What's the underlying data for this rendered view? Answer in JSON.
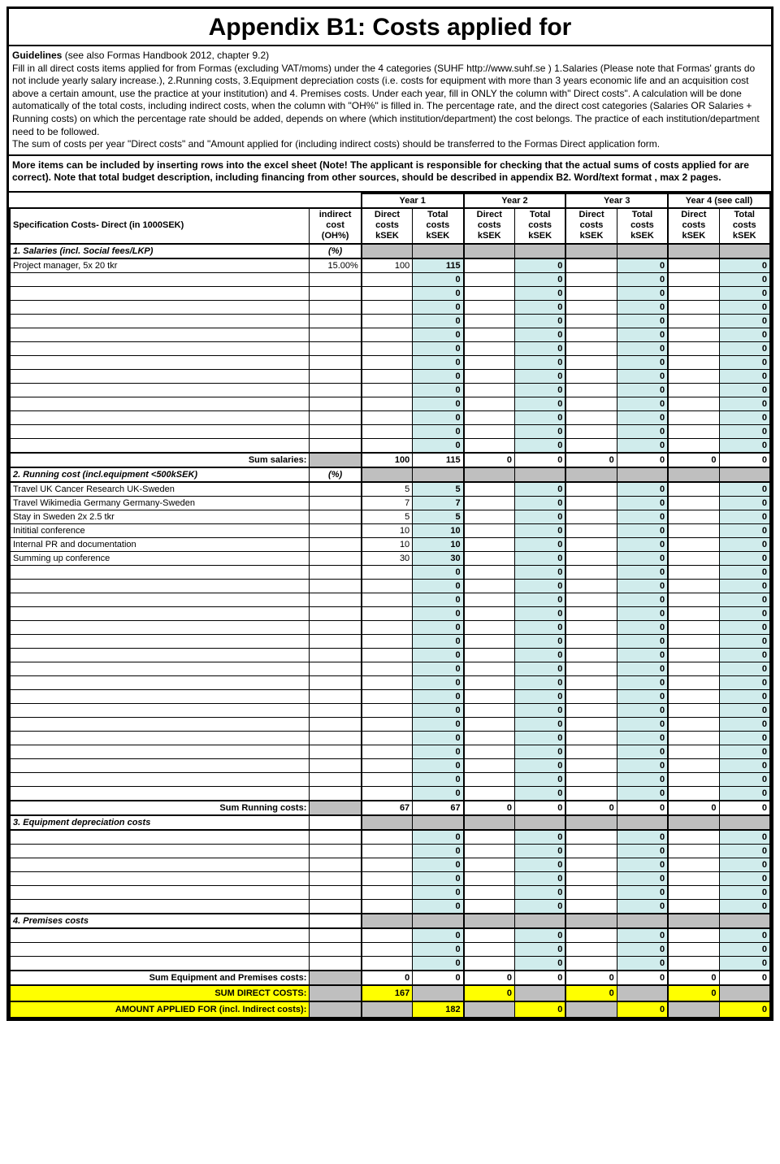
{
  "title": "Appendix B1: Costs applied for",
  "guidelines_label": "Guidelines",
  "guidelines_ref": "(see also Formas Handbook 2012, chapter 9.2)",
  "guidelines_body": "Fill in all direct costs items applied for from Formas (excluding VAT/moms) under the 4 categories (SUHF http://www.suhf.se ) 1.Salaries (Please note that Formas' grants do not include yearly salary increase.), 2.Running costs, 3.Equipment depreciation costs (i.e. costs for equipment with more than 3 years economic life and an acquisition cost above a certain amount, use the practice at your institution) and 4. Premises costs. Under each year, fill in ONLY the column with\" Direct costs\". A calculation will be done automatically of the total costs, including indirect costs, when the column with \"OH%\" is filled in. The percentage rate, and the direct cost categories (Salaries OR Salaries + Running costs) on which the percentage rate should be added, depends on where (which institution/department) the cost belongs. The practice of each institution/department need to be followed.\nThe sum of costs per year \"Direct costs\"  and \"Amount applied for (including indirect costs) should be transferred to the Formas Direct  application form.",
  "more_items_note": "More items can be included by inserting rows into the excel sheet (Note! The applicant is responsible for checking that the actual sums of costs applied for are correct). Note that total budget description, including financing from other sources,  should  be described in appendix B2. Word/text format , max 2 pages.",
  "years": [
    "Year 1",
    "Year 2",
    "Year 3",
    "Year 4 (see call)"
  ],
  "headers": {
    "spec": "Specification Costs- Direct (in 1000SEK)",
    "indirect": "indirect cost (OH%)",
    "direct": "Direct costs kSEK",
    "total": "Total costs kSEK"
  },
  "sections": {
    "salaries": {
      "title": "1. Salaries  (incl. Social fees/LKP)",
      "oh_label": "(%)",
      "rows": [
        {
          "label": "Project manager, 5x 20 tkr",
          "oh": "15.00%",
          "y1d": "100",
          "y1t": "115",
          "y2t": "0",
          "y3t": "0",
          "y4t": "0"
        },
        {
          "y1t": "0",
          "y2t": "0",
          "y3t": "0",
          "y4t": "0"
        },
        {
          "y1t": "0",
          "y2t": "0",
          "y3t": "0",
          "y4t": "0"
        },
        {
          "y1t": "0",
          "y2t": "0",
          "y3t": "0",
          "y4t": "0"
        },
        {
          "y1t": "0",
          "y2t": "0",
          "y3t": "0",
          "y4t": "0"
        },
        {
          "y1t": "0",
          "y2t": "0",
          "y3t": "0",
          "y4t": "0"
        },
        {
          "y1t": "0",
          "y2t": "0",
          "y3t": "0",
          "y4t": "0"
        },
        {
          "y1t": "0",
          "y2t": "0",
          "y3t": "0",
          "y4t": "0"
        },
        {
          "y1t": "0",
          "y2t": "0",
          "y3t": "0",
          "y4t": "0"
        },
        {
          "y1t": "0",
          "y2t": "0",
          "y3t": "0",
          "y4t": "0"
        },
        {
          "y1t": "0",
          "y2t": "0",
          "y3t": "0",
          "y4t": "0"
        },
        {
          "y1t": "0",
          "y2t": "0",
          "y3t": "0",
          "y4t": "0"
        },
        {
          "y1t": "0",
          "y2t": "0",
          "y3t": "0",
          "y4t": "0"
        },
        {
          "y1t": "0",
          "y2t": "0",
          "y3t": "0",
          "y4t": "0"
        }
      ],
      "sum_label": "Sum salaries:",
      "sum": {
        "y1d": "100",
        "y1t": "115",
        "y2d": "0",
        "y2t": "0",
        "y3d": "0",
        "y3t": "0",
        "y4d": "0",
        "y4t": "0"
      }
    },
    "running": {
      "title": "2. Running cost (incl.equipment <500kSEK)",
      "oh_label": "(%)",
      "rows": [
        {
          "label": "Travel UK Cancer Research UK-Sweden",
          "y1d": "5",
          "y1t": "5",
          "y2t": "0",
          "y3t": "0",
          "y4t": "0"
        },
        {
          "label": "Travel Wikimedia Germany Germany-Sweden",
          "y1d": "7",
          "y1t": "7",
          "y2t": "0",
          "y3t": "0",
          "y4t": "0"
        },
        {
          "label": "Stay in Sweden 2x 2.5 tkr",
          "y1d": "5",
          "y1t": "5",
          "y2t": "0",
          "y3t": "0",
          "y4t": "0"
        },
        {
          "label": "Inititial conference",
          "y1d": "10",
          "y1t": "10",
          "y2t": "0",
          "y3t": "0",
          "y4t": "0"
        },
        {
          "label": "Internal PR and documentation",
          "y1d": "10",
          "y1t": "10",
          "y2t": "0",
          "y3t": "0",
          "y4t": "0"
        },
        {
          "label": "Summing up conference",
          "y1d": "30",
          "y1t": "30",
          "y2t": "0",
          "y3t": "0",
          "y4t": "0"
        },
        {
          "y1t": "0",
          "y2t": "0",
          "y3t": "0",
          "y4t": "0"
        },
        {
          "y1t": "0",
          "y2t": "0",
          "y3t": "0",
          "y4t": "0"
        },
        {
          "y1t": "0",
          "y2t": "0",
          "y3t": "0",
          "y4t": "0"
        },
        {
          "y1t": "0",
          "y2t": "0",
          "y3t": "0",
          "y4t": "0"
        },
        {
          "y1t": "0",
          "y2t": "0",
          "y3t": "0",
          "y4t": "0"
        },
        {
          "y1t": "0",
          "y2t": "0",
          "y3t": "0",
          "y4t": "0"
        },
        {
          "y1t": "0",
          "y2t": "0",
          "y3t": "0",
          "y4t": "0"
        },
        {
          "y1t": "0",
          "y2t": "0",
          "y3t": "0",
          "y4t": "0"
        },
        {
          "y1t": "0",
          "y2t": "0",
          "y3t": "0",
          "y4t": "0"
        },
        {
          "y1t": "0",
          "y2t": "0",
          "y3t": "0",
          "y4t": "0"
        },
        {
          "y1t": "0",
          "y2t": "0",
          "y3t": "0",
          "y4t": "0"
        },
        {
          "y1t": "0",
          "y2t": "0",
          "y3t": "0",
          "y4t": "0"
        },
        {
          "y1t": "0",
          "y2t": "0",
          "y3t": "0",
          "y4t": "0"
        },
        {
          "y1t": "0",
          "y2t": "0",
          "y3t": "0",
          "y4t": "0"
        },
        {
          "y1t": "0",
          "y2t": "0",
          "y3t": "0",
          "y4t": "0"
        },
        {
          "y1t": "0",
          "y2t": "0",
          "y3t": "0",
          "y4t": "0"
        },
        {
          "y1t": "0",
          "y2t": "0",
          "y3t": "0",
          "y4t": "0"
        }
      ],
      "sum_label": "Sum Running costs:",
      "sum": {
        "y1d": "67",
        "y1t": "67",
        "y2d": "0",
        "y2t": "0",
        "y3d": "0",
        "y3t": "0",
        "y4d": "0",
        "y4t": "0"
      }
    },
    "equipment": {
      "title": "3. Equipment depreciation costs",
      "rows": [
        {
          "y1t": "0",
          "y2t": "0",
          "y3t": "0",
          "y4t": "0"
        },
        {
          "y1t": "0",
          "y2t": "0",
          "y3t": "0",
          "y4t": "0"
        },
        {
          "y1t": "0",
          "y2t": "0",
          "y3t": "0",
          "y4t": "0"
        },
        {
          "y1t": "0",
          "y2t": "0",
          "y3t": "0",
          "y4t": "0"
        },
        {
          "y1t": "0",
          "y2t": "0",
          "y3t": "0",
          "y4t": "0"
        },
        {
          "y1t": "0",
          "y2t": "0",
          "y3t": "0",
          "y4t": "0"
        }
      ]
    },
    "premises": {
      "title": "4. Premises costs",
      "rows": [
        {
          "y1t": "0",
          "y2t": "0",
          "y3t": "0",
          "y4t": "0"
        },
        {
          "y1t": "0",
          "y2t": "0",
          "y3t": "0",
          "y4t": "0"
        },
        {
          "y1t": "0",
          "y2t": "0",
          "y3t": "0",
          "y4t": "0"
        }
      ],
      "sum_label": "Sum Equipment and Premises costs:",
      "sum": {
        "y1d": "0",
        "y1t": "0",
        "y2d": "0",
        "y2t": "0",
        "y3d": "0",
        "y3t": "0",
        "y4d": "0",
        "y4t": "0"
      }
    }
  },
  "totals": {
    "sum_direct_label": "SUM DIRECT COSTS:",
    "sum_direct": {
      "y1d": "167",
      "y2d": "0",
      "y3d": "0",
      "y4d": "0"
    },
    "amount_applied_label": "AMOUNT APPLIED FOR (incl. Indirect costs):",
    "amount_applied": {
      "y1t": "182",
      "y2t": "0",
      "y3t": "0",
      "y4t": "0"
    }
  },
  "colors": {
    "grey": "#bfbfbf",
    "cyan": "#d0ecec",
    "yellow": "#ffff00"
  }
}
